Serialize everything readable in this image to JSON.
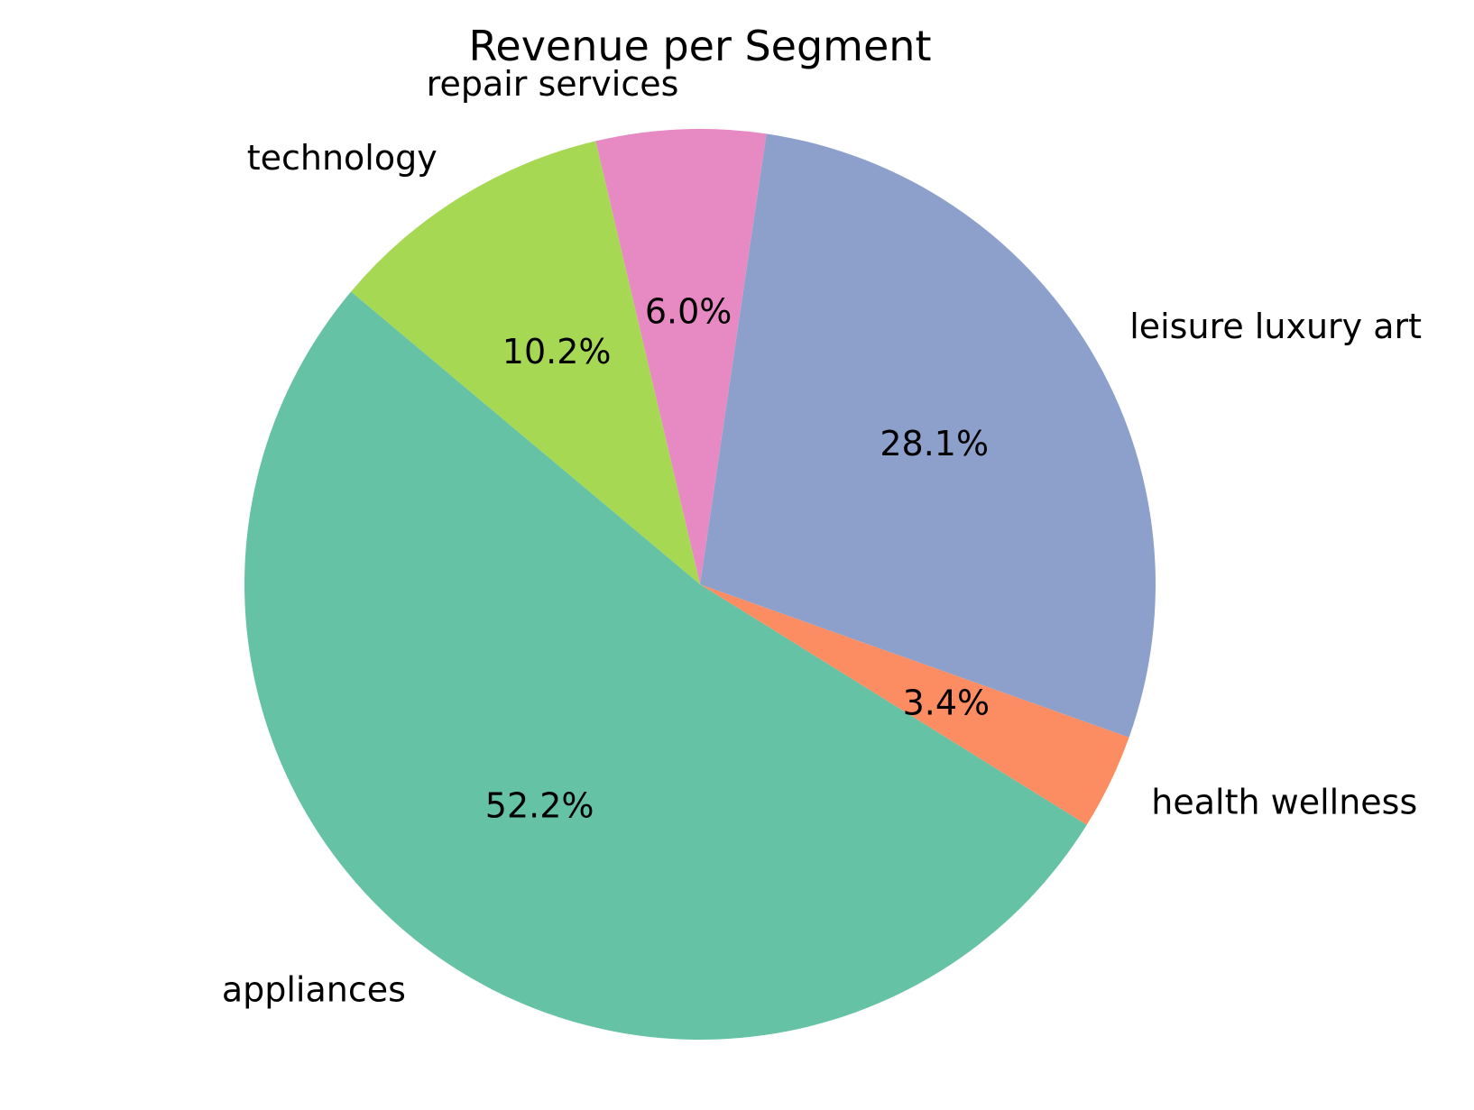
{
  "chart_data": {
    "type": "pie",
    "title": "Revenue per Segment",
    "start_angle_deg": 140,
    "direction": "counterclockwise",
    "slices": [
      {
        "label": "appliances",
        "value": 52.2,
        "pct_label": "52.2%",
        "color": "#66c2a5"
      },
      {
        "label": "health wellness",
        "value": 3.4,
        "pct_label": "3.4%",
        "color": "#fc8d62"
      },
      {
        "label": "leisure luxury art",
        "value": 28.1,
        "pct_label": "28.1%",
        "color": "#8da0cb"
      },
      {
        "label": "repair services",
        "value": 6.0,
        "pct_label": "6.0%",
        "color": "#e78ac3"
      },
      {
        "label": "technology",
        "value": 10.2,
        "pct_label": "10.2%",
        "color": "#a6d854"
      }
    ]
  }
}
